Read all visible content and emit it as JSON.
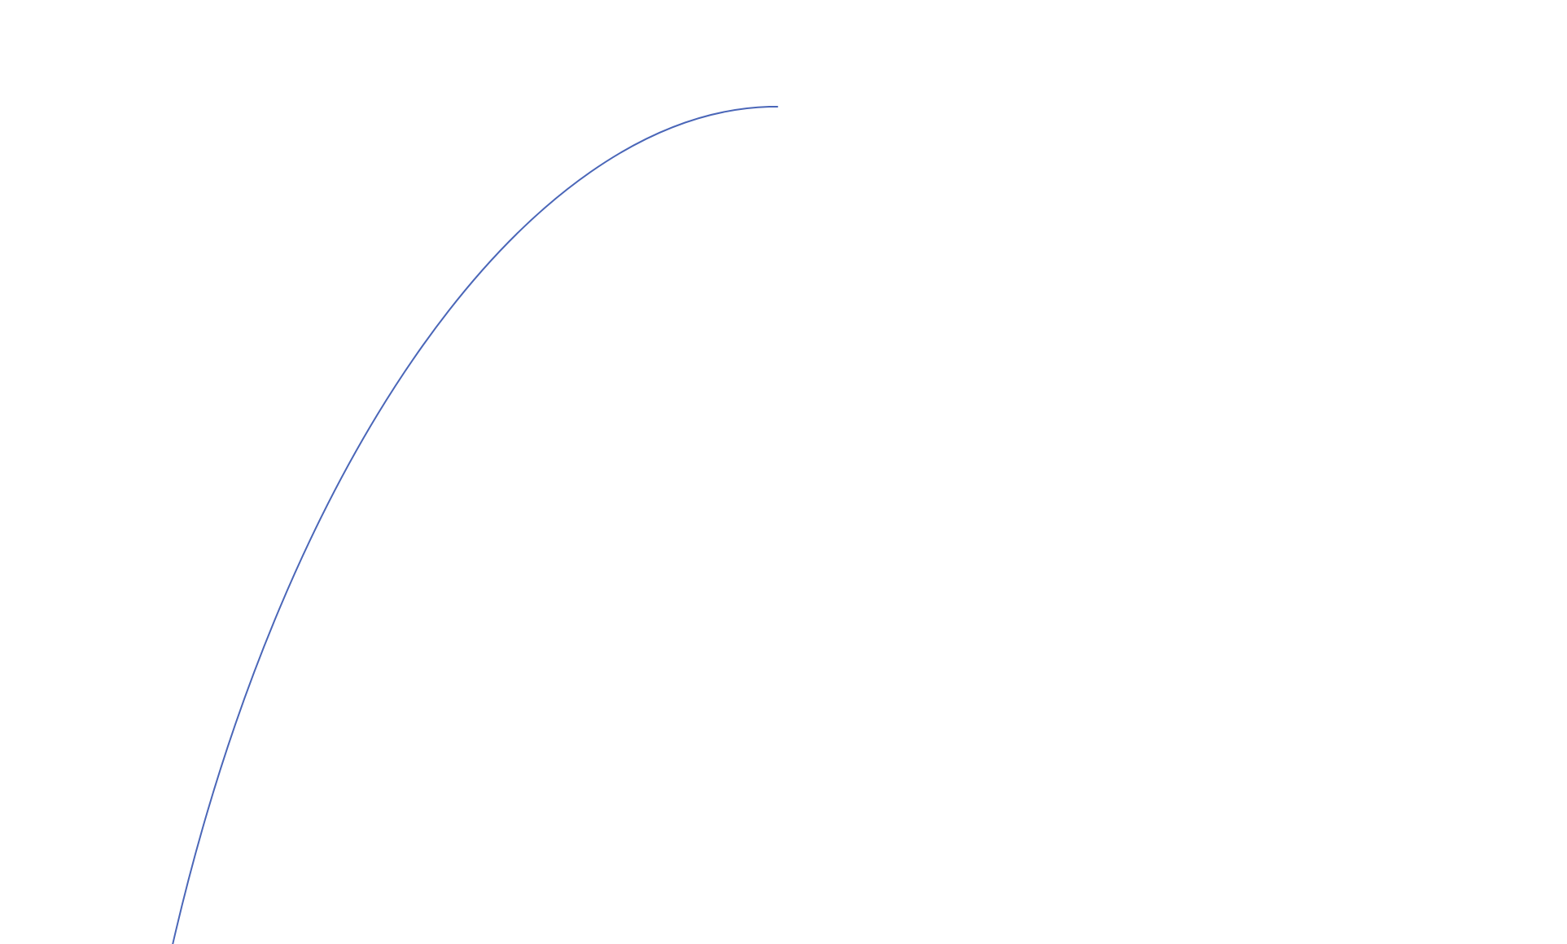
{
  "chart_data": {
    "type": "line",
    "title": "",
    "xlabel": "",
    "ylabel": "",
    "axes_visible": false,
    "grid": false,
    "legend": "none",
    "series": [
      {
        "color": "#4a66b8",
        "shape": "concave rising curve that levels off at its peak"
      }
    ]
  }
}
